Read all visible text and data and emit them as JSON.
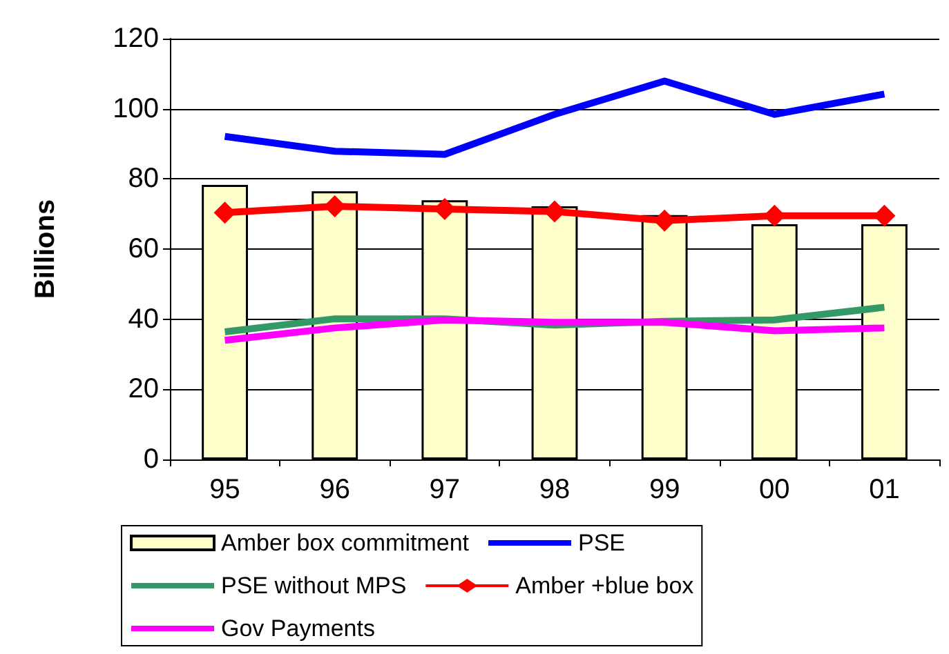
{
  "chart_data": {
    "type": "line",
    "ylabel": "Billions",
    "categories": [
      "95",
      "96",
      "97",
      "98",
      "99",
      "00",
      "01"
    ],
    "ylim": [
      0,
      120
    ],
    "yticks": [
      0,
      20,
      40,
      60,
      80,
      100,
      120
    ],
    "grid": "y",
    "legend": "bottom",
    "series": [
      {
        "name": "Amber box commitment",
        "type": "bar",
        "color": "#ffffcc",
        "values": [
          78.3,
          76.5,
          73.9,
          72.2,
          69.7,
          67.1,
          67.1
        ]
      },
      {
        "name": "PSE",
        "marker": "none",
        "color": "#0000ff",
        "values": [
          92.1,
          87.9,
          87.0,
          98.4,
          107.9,
          98.4,
          104.2
        ]
      },
      {
        "name": "PSE without MPS",
        "marker": "none",
        "color": "#339966",
        "values": [
          36.4,
          40.1,
          40.1,
          38.3,
          39.4,
          39.8,
          43.4
        ]
      },
      {
        "name": "Amber +blue box",
        "marker": "diamond",
        "color": "#ff0000",
        "values": [
          70.4,
          72.2,
          71.4,
          70.7,
          68.1,
          69.5,
          69.5
        ]
      },
      {
        "name": "Gov Payments",
        "marker": "none",
        "color": "#ff00ff",
        "values": [
          34.0,
          37.5,
          39.8,
          39.1,
          39.1,
          36.7,
          37.5
        ]
      }
    ]
  }
}
